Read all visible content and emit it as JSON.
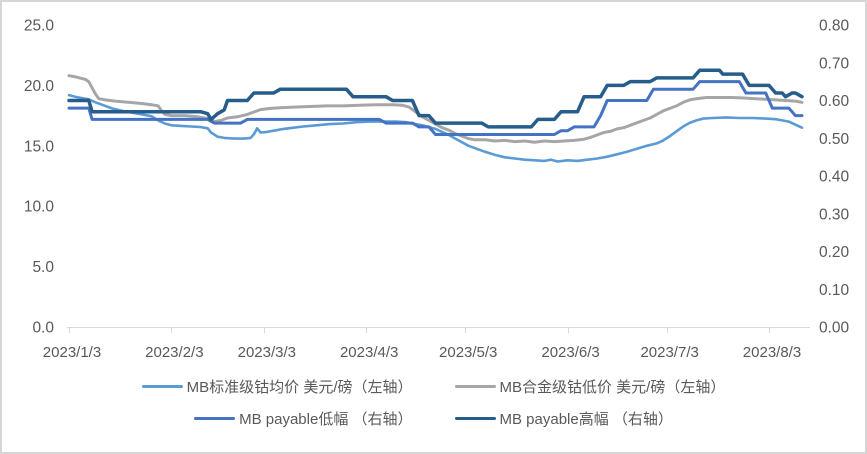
{
  "chart_data": {
    "type": "line",
    "title": "",
    "x_axis": {
      "kind": "date",
      "domain_days": [
        0,
        224
      ],
      "ticks": [
        {
          "day": 0,
          "label": "2023/1/3"
        },
        {
          "day": 31,
          "label": "2023/2/3"
        },
        {
          "day": 59,
          "label": "2023/3/3"
        },
        {
          "day": 90,
          "label": "2023/4/3"
        },
        {
          "day": 120,
          "label": "2023/5/3"
        },
        {
          "day": 151,
          "label": "2023/6/3"
        },
        {
          "day": 181,
          "label": "2023/7/3"
        },
        {
          "day": 212,
          "label": "2023/8/3"
        }
      ]
    },
    "y_axis_left": {
      "min": 0,
      "max": 25,
      "step": 5,
      "ticks": [
        {
          "value": 25,
          "label": "25.0"
        },
        {
          "value": 20,
          "label": "20.0"
        },
        {
          "value": 15,
          "label": "15.0"
        },
        {
          "value": 10,
          "label": "10.0"
        },
        {
          "value": 5,
          "label": "5.0"
        },
        {
          "value": 0,
          "label": "0.0"
        }
      ]
    },
    "y_axis_right": {
      "min": 0,
      "max": 0.8,
      "step": 0.1,
      "ticks": [
        {
          "value": 0.8,
          "label": "0.80"
        },
        {
          "value": 0.7,
          "label": "0.70"
        },
        {
          "value": 0.6,
          "label": "0.60"
        },
        {
          "value": 0.5,
          "label": "0.50"
        },
        {
          "value": 0.4,
          "label": "0.40"
        },
        {
          "value": 0.3,
          "label": "0.30"
        },
        {
          "value": 0.2,
          "label": "0.20"
        },
        {
          "value": 0.1,
          "label": "0.10"
        },
        {
          "value": 0.0,
          "label": "0.00"
        }
      ]
    },
    "grid": "off",
    "legend_position": "bottom",
    "legend_rows": [
      [
        0,
        1
      ],
      [
        2,
        3
      ]
    ],
    "colors": {
      "axis_line": "#d9d9d9",
      "tick_text": "#595959",
      "series_standard_avg": "#5b9bd5",
      "series_alloy_low": "#a6a6a6",
      "series_payable_low": "#4472c4",
      "series_payable_high": "#275d8b"
    },
    "series": [
      {
        "key": "mb-standard-avg",
        "name": "MB标准级钴均价 美元/磅（左轴）",
        "axis": "left",
        "color": "#5b9bd5",
        "width": 2.6,
        "points": [
          [
            0,
            19.2
          ],
          [
            2,
            19.05
          ],
          [
            4,
            18.95
          ],
          [
            6,
            18.85
          ],
          [
            8,
            18.6
          ],
          [
            10,
            18.4
          ],
          [
            13,
            18.1
          ],
          [
            16,
            17.9
          ],
          [
            19,
            17.75
          ],
          [
            22,
            17.6
          ],
          [
            25,
            17.45
          ],
          [
            27,
            17.1
          ],
          [
            29,
            16.85
          ],
          [
            31,
            16.7
          ],
          [
            34,
            16.65
          ],
          [
            37,
            16.6
          ],
          [
            40,
            16.55
          ],
          [
            42,
            16.45
          ],
          [
            43,
            16.1
          ],
          [
            45,
            15.75
          ],
          [
            47,
            15.65
          ],
          [
            50,
            15.6
          ],
          [
            53,
            15.6
          ],
          [
            55,
            15.65
          ],
          [
            56,
            15.95
          ],
          [
            57,
            16.45
          ],
          [
            58,
            16.1
          ],
          [
            60,
            16.15
          ],
          [
            62,
            16.25
          ],
          [
            65,
            16.4
          ],
          [
            68,
            16.5
          ],
          [
            71,
            16.6
          ],
          [
            75,
            16.7
          ],
          [
            79,
            16.8
          ],
          [
            83,
            16.85
          ],
          [
            87,
            16.95
          ],
          [
            91,
            17.0
          ],
          [
            95,
            17.0
          ],
          [
            99,
            17.0
          ],
          [
            102,
            16.95
          ],
          [
            104,
            16.85
          ],
          [
            107,
            16.7
          ],
          [
            109,
            16.55
          ],
          [
            111,
            16.4
          ],
          [
            113,
            16.15
          ],
          [
            115,
            15.9
          ],
          [
            117,
            15.6
          ],
          [
            119,
            15.3
          ],
          [
            121,
            15.0
          ],
          [
            123,
            14.8
          ],
          [
            126,
            14.5
          ],
          [
            129,
            14.25
          ],
          [
            132,
            14.05
          ],
          [
            135,
            13.95
          ],
          [
            138,
            13.85
          ],
          [
            141,
            13.8
          ],
          [
            144,
            13.75
          ],
          [
            146,
            13.85
          ],
          [
            148,
            13.7
          ],
          [
            151,
            13.8
          ],
          [
            154,
            13.75
          ],
          [
            157,
            13.85
          ],
          [
            160,
            13.95
          ],
          [
            163,
            14.1
          ],
          [
            166,
            14.3
          ],
          [
            169,
            14.5
          ],
          [
            172,
            14.75
          ],
          [
            175,
            15.0
          ],
          [
            178,
            15.2
          ],
          [
            180,
            15.45
          ],
          [
            182,
            15.8
          ],
          [
            184,
            16.2
          ],
          [
            186,
            16.6
          ],
          [
            188,
            16.9
          ],
          [
            190,
            17.1
          ],
          [
            192,
            17.25
          ],
          [
            195,
            17.3
          ],
          [
            199,
            17.35
          ],
          [
            203,
            17.3
          ],
          [
            207,
            17.3
          ],
          [
            211,
            17.25
          ],
          [
            214,
            17.2
          ],
          [
            216,
            17.1
          ],
          [
            218,
            17.0
          ],
          [
            220,
            16.75
          ],
          [
            222,
            16.5
          ]
        ]
      },
      {
        "key": "mb-alloy-low",
        "name": "MB合金级钴低价 美元/磅（左轴）",
        "axis": "left",
        "color": "#a6a6a6",
        "width": 3,
        "points": [
          [
            0,
            20.8
          ],
          [
            2,
            20.7
          ],
          [
            5,
            20.5
          ],
          [
            6,
            20.3
          ],
          [
            7,
            19.8
          ],
          [
            8,
            19.3
          ],
          [
            9,
            18.9
          ],
          [
            11,
            18.8
          ],
          [
            14,
            18.7
          ],
          [
            18,
            18.6
          ],
          [
            22,
            18.5
          ],
          [
            25,
            18.4
          ],
          [
            27,
            18.3
          ],
          [
            28,
            17.9
          ],
          [
            29,
            17.6
          ],
          [
            31,
            17.5
          ],
          [
            35,
            17.5
          ],
          [
            39,
            17.4
          ],
          [
            41,
            17.3
          ],
          [
            43,
            17.2
          ],
          [
            44,
            17.0
          ],
          [
            46,
            17.1
          ],
          [
            48,
            17.3
          ],
          [
            51,
            17.4
          ],
          [
            54,
            17.6
          ],
          [
            56,
            17.8
          ],
          [
            58,
            18.0
          ],
          [
            61,
            18.1
          ],
          [
            64,
            18.15
          ],
          [
            68,
            18.2
          ],
          [
            73,
            18.25
          ],
          [
            78,
            18.3
          ],
          [
            83,
            18.3
          ],
          [
            88,
            18.35
          ],
          [
            93,
            18.4
          ],
          [
            98,
            18.4
          ],
          [
            101,
            18.35
          ],
          [
            103,
            18.2
          ],
          [
            105,
            17.8
          ],
          [
            107,
            17.4
          ],
          [
            109,
            17.1
          ],
          [
            111,
            16.8
          ],
          [
            113,
            16.5
          ],
          [
            115,
            16.3
          ],
          [
            117,
            16.0
          ],
          [
            119,
            15.8
          ],
          [
            121,
            15.6
          ],
          [
            123,
            15.5
          ],
          [
            126,
            15.5
          ],
          [
            129,
            15.4
          ],
          [
            132,
            15.45
          ],
          [
            135,
            15.35
          ],
          [
            138,
            15.4
          ],
          [
            141,
            15.3
          ],
          [
            144,
            15.4
          ],
          [
            147,
            15.35
          ],
          [
            150,
            15.4
          ],
          [
            153,
            15.45
          ],
          [
            156,
            15.55
          ],
          [
            158,
            15.7
          ],
          [
            160,
            15.9
          ],
          [
            162,
            16.1
          ],
          [
            164,
            16.2
          ],
          [
            166,
            16.4
          ],
          [
            168,
            16.5
          ],
          [
            170,
            16.7
          ],
          [
            172,
            16.9
          ],
          [
            174,
            17.1
          ],
          [
            176,
            17.3
          ],
          [
            178,
            17.6
          ],
          [
            180,
            17.9
          ],
          [
            182,
            18.1
          ],
          [
            184,
            18.3
          ],
          [
            186,
            18.6
          ],
          [
            188,
            18.8
          ],
          [
            190,
            18.9
          ],
          [
            193,
            19.0
          ],
          [
            197,
            19.0
          ],
          [
            201,
            19.0
          ],
          [
            205,
            18.95
          ],
          [
            208,
            18.9
          ],
          [
            211,
            18.85
          ],
          [
            214,
            18.8
          ],
          [
            217,
            18.75
          ],
          [
            220,
            18.7
          ],
          [
            222,
            18.6
          ]
        ]
      },
      {
        "key": "mb-payable-low",
        "name": "MB payable低幅 （右轴）",
        "axis": "right",
        "color": "#4472c4",
        "width": 3,
        "points": [
          [
            0,
            0.58
          ],
          [
            6,
            0.58
          ],
          [
            7,
            0.55
          ],
          [
            42,
            0.55
          ],
          [
            44,
            0.54
          ],
          [
            52,
            0.54
          ],
          [
            54,
            0.55
          ],
          [
            94,
            0.55
          ],
          [
            96,
            0.54
          ],
          [
            104,
            0.54
          ],
          [
            106,
            0.53
          ],
          [
            109,
            0.53
          ],
          [
            111,
            0.51
          ],
          [
            147,
            0.51
          ],
          [
            149,
            0.52
          ],
          [
            151,
            0.52
          ],
          [
            153,
            0.53
          ],
          [
            159,
            0.53
          ],
          [
            161,
            0.56
          ],
          [
            162,
            0.58
          ],
          [
            163,
            0.6
          ],
          [
            175,
            0.6
          ],
          [
            177,
            0.63
          ],
          [
            189,
            0.63
          ],
          [
            191,
            0.65
          ],
          [
            203,
            0.65
          ],
          [
            205,
            0.62
          ],
          [
            211,
            0.62
          ],
          [
            212,
            0.6
          ],
          [
            213,
            0.58
          ],
          [
            218,
            0.58
          ],
          [
            219,
            0.57
          ],
          [
            220,
            0.56
          ],
          [
            222,
            0.56
          ]
        ]
      },
      {
        "key": "mb-payable-high",
        "name": "MB payable高幅 （右轴）",
        "axis": "right",
        "color": "#275d8b",
        "width": 3.5,
        "points": [
          [
            0,
            0.6
          ],
          [
            6,
            0.6
          ],
          [
            7,
            0.57
          ],
          [
            40,
            0.57
          ],
          [
            42,
            0.565
          ],
          [
            43,
            0.55
          ],
          [
            45,
            0.565
          ],
          [
            46,
            0.57
          ],
          [
            47,
            0.575
          ],
          [
            48,
            0.6
          ],
          [
            54,
            0.6
          ],
          [
            56,
            0.62
          ],
          [
            62,
            0.62
          ],
          [
            64,
            0.63
          ],
          [
            84,
            0.63
          ],
          [
            86,
            0.61
          ],
          [
            96,
            0.61
          ],
          [
            98,
            0.6
          ],
          [
            104,
            0.6
          ],
          [
            106,
            0.56
          ],
          [
            109,
            0.56
          ],
          [
            111,
            0.54
          ],
          [
            125,
            0.54
          ],
          [
            127,
            0.53
          ],
          [
            140,
            0.53
          ],
          [
            142,
            0.55
          ],
          [
            147,
            0.55
          ],
          [
            149,
            0.57
          ],
          [
            154,
            0.57
          ],
          [
            156,
            0.61
          ],
          [
            161,
            0.61
          ],
          [
            163,
            0.64
          ],
          [
            168,
            0.64
          ],
          [
            170,
            0.65
          ],
          [
            176,
            0.65
          ],
          [
            178,
            0.66
          ],
          [
            189,
            0.66
          ],
          [
            191,
            0.68
          ],
          [
            197,
            0.68
          ],
          [
            198,
            0.67
          ],
          [
            204,
            0.67
          ],
          [
            206,
            0.64
          ],
          [
            212,
            0.64
          ],
          [
            214,
            0.62
          ],
          [
            216,
            0.62
          ],
          [
            217,
            0.61
          ],
          [
            219,
            0.62
          ],
          [
            220,
            0.62
          ],
          [
            222,
            0.61
          ]
        ]
      }
    ]
  }
}
